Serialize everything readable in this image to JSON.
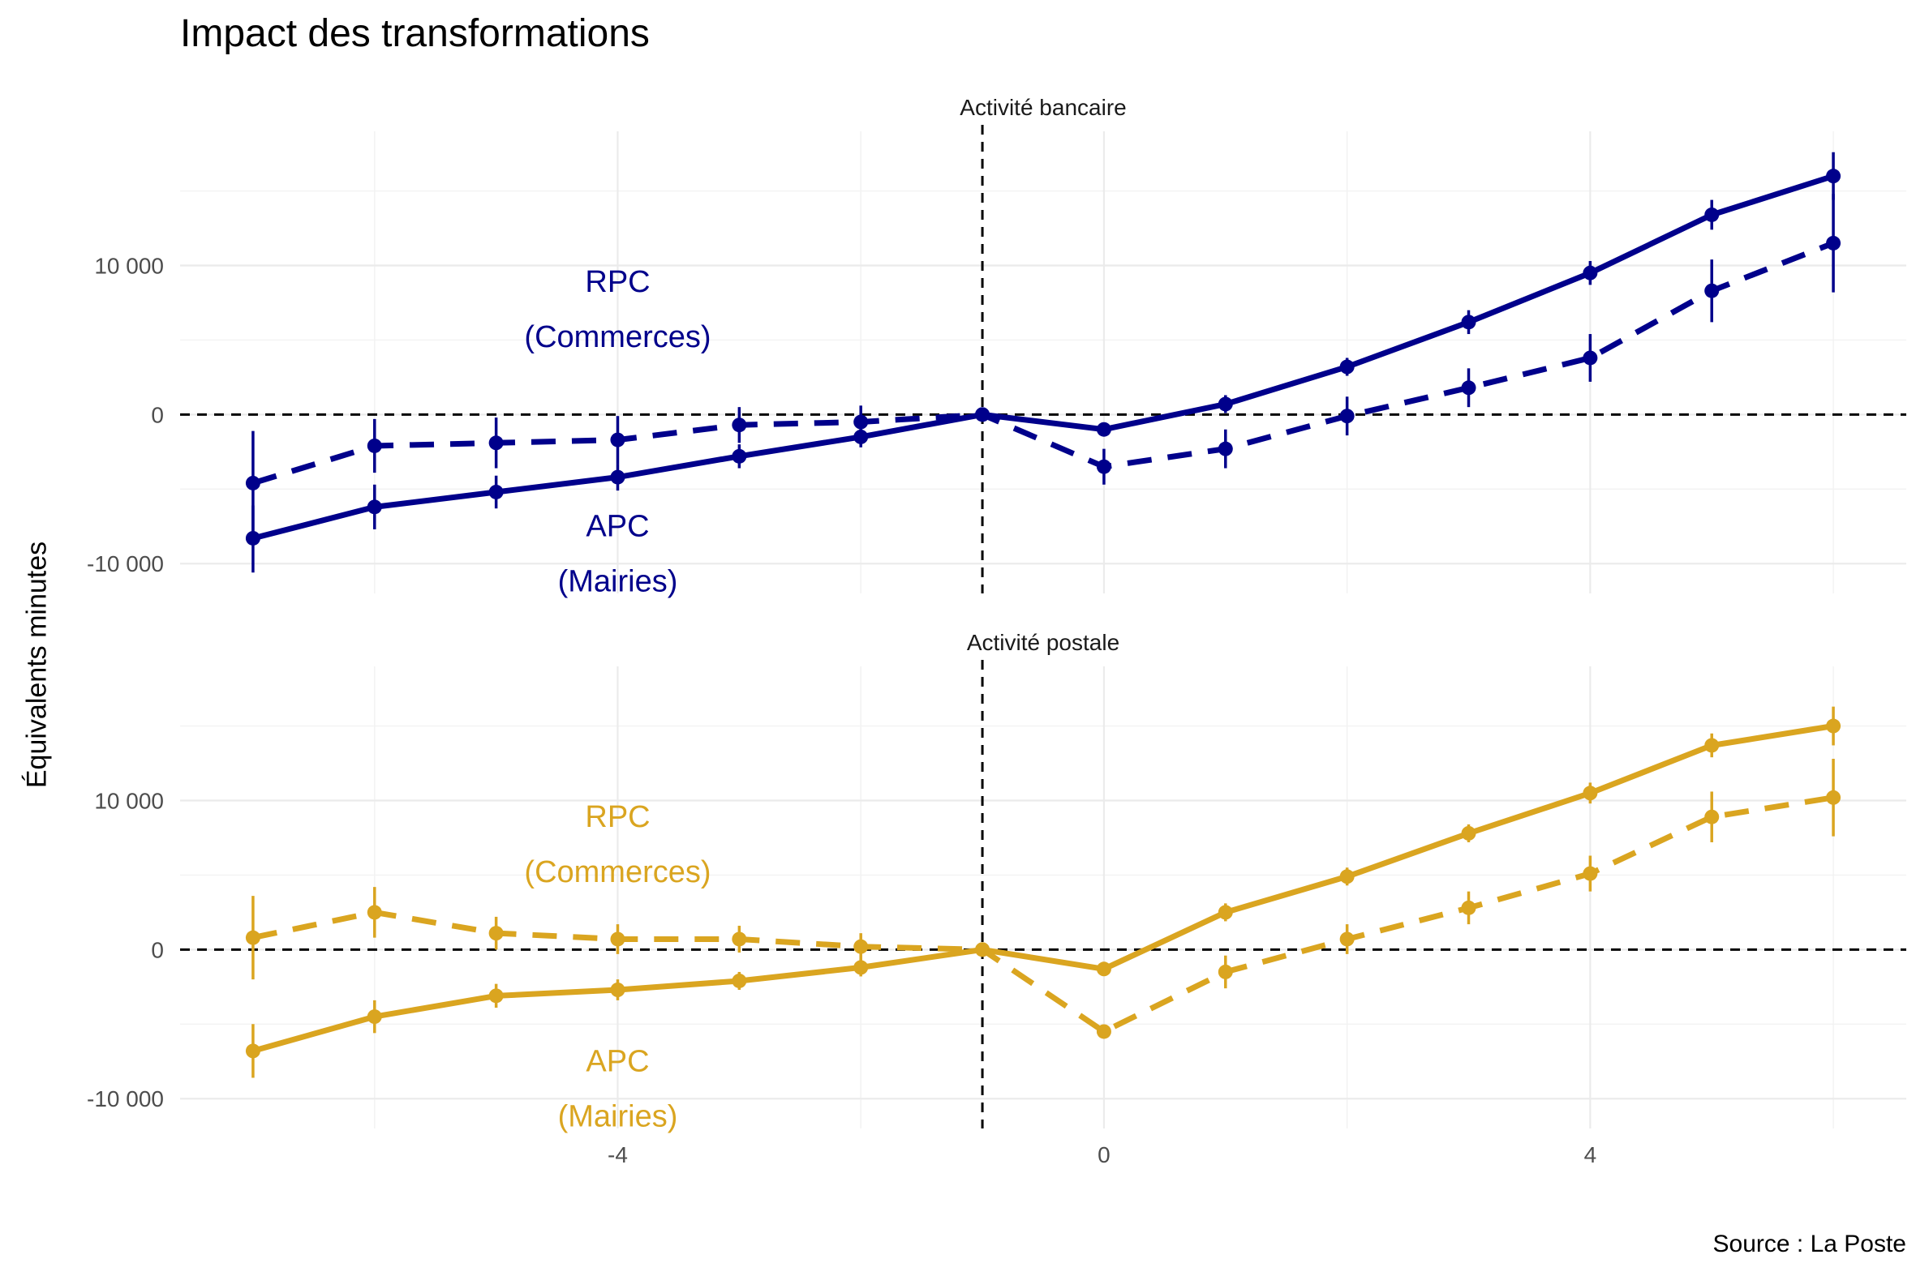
{
  "title": "Impact des transformations",
  "ylabel": "Équivalents minutes",
  "source": "Source : La Poste",
  "chart_data": {
    "type": "line",
    "x_ticks": [
      -4,
      0,
      4
    ],
    "x_tick_labels": [
      "-4",
      "0",
      "4"
    ],
    "y_ticks": [
      -10000,
      0,
      10000
    ],
    "y_tick_labels": [
      "-10 000",
      "0",
      "10 000"
    ],
    "xlim": [
      -7.6,
      6.6
    ],
    "ylim": [
      -12000,
      19000
    ],
    "reference_lines": {
      "x": -1,
      "y": 0
    },
    "grid": true,
    "panels": [
      {
        "label": "Activité bancaire",
        "color": "#00008B",
        "x": [
          -7,
          -6,
          -5,
          -4,
          -3,
          -2,
          -1,
          0,
          1,
          2,
          3,
          4,
          5,
          6
        ],
        "series": [
          {
            "name": "APC",
            "linetype": "solid",
            "values": [
              -8300,
              -6200,
              -5200,
              -4200,
              -2800,
              -1500,
              0,
              -1000,
              700,
              3200,
              6200,
              9500,
              13400,
              16000
            ],
            "lower": [
              -10600,
              -7700,
              -6300,
              -5100,
              -3600,
              -2200,
              0,
              -1000,
              100,
              2600,
              5400,
              8700,
              12400,
              14400
            ],
            "upper": [
              -6100,
              -4700,
              -4100,
              -3300,
              -2000,
              -800,
              0,
              -1000,
              1300,
              3800,
              7000,
              10300,
              14400,
              17600
            ]
          },
          {
            "name": "RPC",
            "linetype": "dashed",
            "values": [
              -4600,
              -2100,
              -1900,
              -1700,
              -700,
              -500,
              0,
              -3500,
              -2300,
              -100,
              1800,
              3800,
              8300,
              11500
            ],
            "lower": [
              -8300,
              -3900,
              -3600,
              -3300,
              -1900,
              -1600,
              0,
              -4700,
              -3600,
              -1400,
              500,
              2200,
              6200,
              8200
            ],
            "upper": [
              -1100,
              -300,
              -200,
              -100,
              500,
              600,
              0,
              -2300,
              -1000,
              1200,
              3100,
              5400,
              10400,
              14800
            ]
          }
        ],
        "annotations": [
          {
            "lines": [
              "RPC",
              "(Commerces)"
            ],
            "x": -4,
            "y": 7100
          },
          {
            "lines": [
              "APC",
              "(Mairies)"
            ],
            "x": -4,
            "y": -9300
          }
        ]
      },
      {
        "label": "Activité postale",
        "color": "#DAA520",
        "x": [
          -7,
          -6,
          -5,
          -4,
          -3,
          -2,
          -1,
          0,
          1,
          2,
          3,
          4,
          5,
          6
        ],
        "series": [
          {
            "name": "APC",
            "linetype": "solid",
            "values": [
              -6800,
              -4500,
              -3100,
              -2700,
              -2100,
              -1200,
              0,
              -1300,
              2500,
              4900,
              7800,
              10500,
              13700,
              15000
            ],
            "lower": [
              -8600,
              -5600,
              -3900,
              -3400,
              -2700,
              -1800,
              0,
              -1300,
              1900,
              4300,
              7200,
              9800,
              12900,
              13700
            ],
            "upper": [
              -5000,
              -3400,
              -2300,
              -2000,
              -1500,
              -600,
              0,
              -1300,
              3100,
              5500,
              8400,
              11200,
              14500,
              16300
            ]
          },
          {
            "name": "RPC",
            "linetype": "dashed",
            "values": [
              800,
              2500,
              1100,
              700,
              700,
              200,
              0,
              -5500,
              -1500,
              700,
              2800,
              5100,
              8900,
              10200
            ],
            "lower": [
              -2000,
              800,
              0,
              -300,
              -200,
              -700,
              0,
              -5500,
              -2600,
              -300,
              1700,
              3900,
              7200,
              7600
            ],
            "upper": [
              3600,
              4200,
              2200,
              1700,
              1600,
              1100,
              0,
              -5500,
              -400,
              1700,
              3900,
              6300,
              10600,
              12800
            ]
          }
        ],
        "annotations": [
          {
            "lines": [
              "RPC",
              "(Commerces)"
            ],
            "x": -4,
            "y": 7100
          },
          {
            "lines": [
              "APC",
              "(Mairies)"
            ],
            "x": -4,
            "y": -9300
          }
        ]
      }
    ]
  }
}
